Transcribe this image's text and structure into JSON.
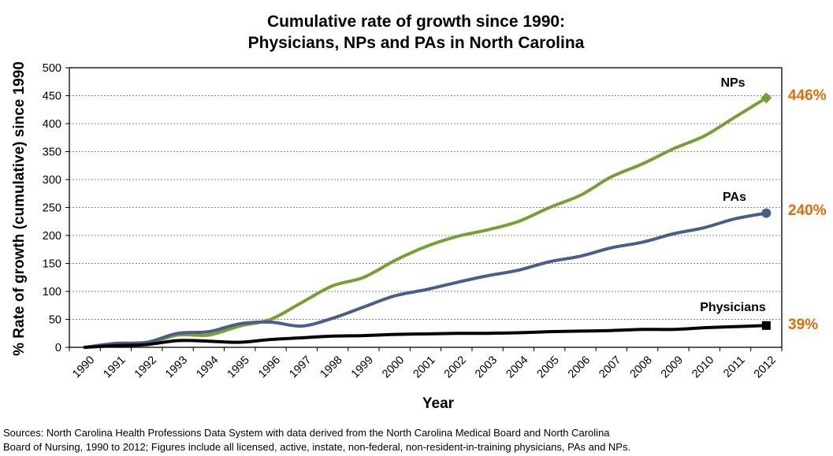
{
  "chart_data": {
    "type": "line",
    "title": [
      "Cumulative rate of growth since 1990:",
      "Physicians, NPs and PAs in North Carolina"
    ],
    "xlabel": "Year",
    "ylabel": "% Rate of growth (cumulative) since 1990",
    "x": [
      "1990",
      "1991",
      "1992",
      "1993",
      "1994",
      "1995",
      "1996",
      "1997",
      "1998",
      "1999",
      "2000",
      "2001",
      "2002",
      "2003",
      "2004",
      "2005",
      "2006",
      "2007",
      "2008",
      "2009",
      "2010",
      "2011",
      "2012"
    ],
    "ylim": [
      0,
      500
    ],
    "yticks": [
      0,
      50,
      100,
      150,
      200,
      250,
      300,
      350,
      400,
      450,
      500
    ],
    "grid": true,
    "series": [
      {
        "name": "NPs",
        "color": "#77a033",
        "marker": "diamond",
        "end_label": "446%",
        "values": [
          0,
          5,
          7,
          22,
          22,
          38,
          50,
          80,
          110,
          125,
          155,
          180,
          198,
          210,
          225,
          250,
          272,
          305,
          328,
          355,
          378,
          412,
          446
        ]
      },
      {
        "name": "PAs",
        "color": "#4a5e8c",
        "marker": "circle",
        "end_label": "240%",
        "values": [
          0,
          7,
          9,
          25,
          28,
          42,
          45,
          38,
          52,
          72,
          92,
          103,
          116,
          128,
          138,
          153,
          163,
          178,
          188,
          203,
          214,
          230,
          240
        ]
      },
      {
        "name": "Physicians",
        "color": "#000000",
        "marker": "square",
        "end_label": "39%",
        "values": [
          0,
          3,
          5,
          12,
          11,
          9,
          14,
          17,
          20,
          21,
          23,
          24,
          25,
          25,
          26,
          28,
          29,
          30,
          32,
          32,
          35,
          37,
          39
        ]
      }
    ],
    "end_label_color": "#e36c0a",
    "legend_placement": "labels at line ends"
  },
  "source_note": [
    "Sources:  North Carolina Health Professions Data System with data derived from the North Carolina Medical Board and North Carolina",
    "Board of Nursing, 1990 to 2012; Figures include all licensed, active, instate, non-federal, non-resident-in-training physicians, PAs and NPs."
  ]
}
